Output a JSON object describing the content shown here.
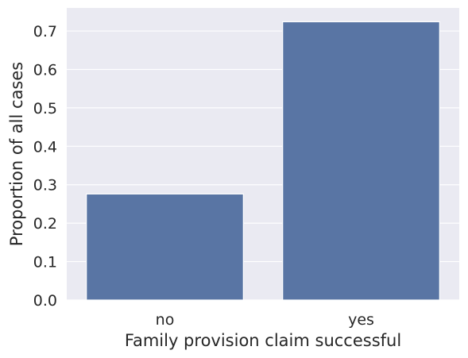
{
  "chart_data": {
    "type": "bar",
    "title": "",
    "xlabel": "Family provision claim successful",
    "ylabel": "Proportion of all cases",
    "categories": [
      "no",
      "yes"
    ],
    "values": [
      0.276,
      0.724
    ],
    "ylim": [
      0,
      0.76
    ],
    "yticks": [
      "0.0",
      "0.1",
      "0.2",
      "0.3",
      "0.4",
      "0.5",
      "0.6",
      "0.7"
    ],
    "grid": true,
    "legend": "none",
    "colors": {
      "bar": "#5975a4",
      "background": "#eaeaf2",
      "grid": "#ffffff",
      "text": "#262626"
    }
  }
}
